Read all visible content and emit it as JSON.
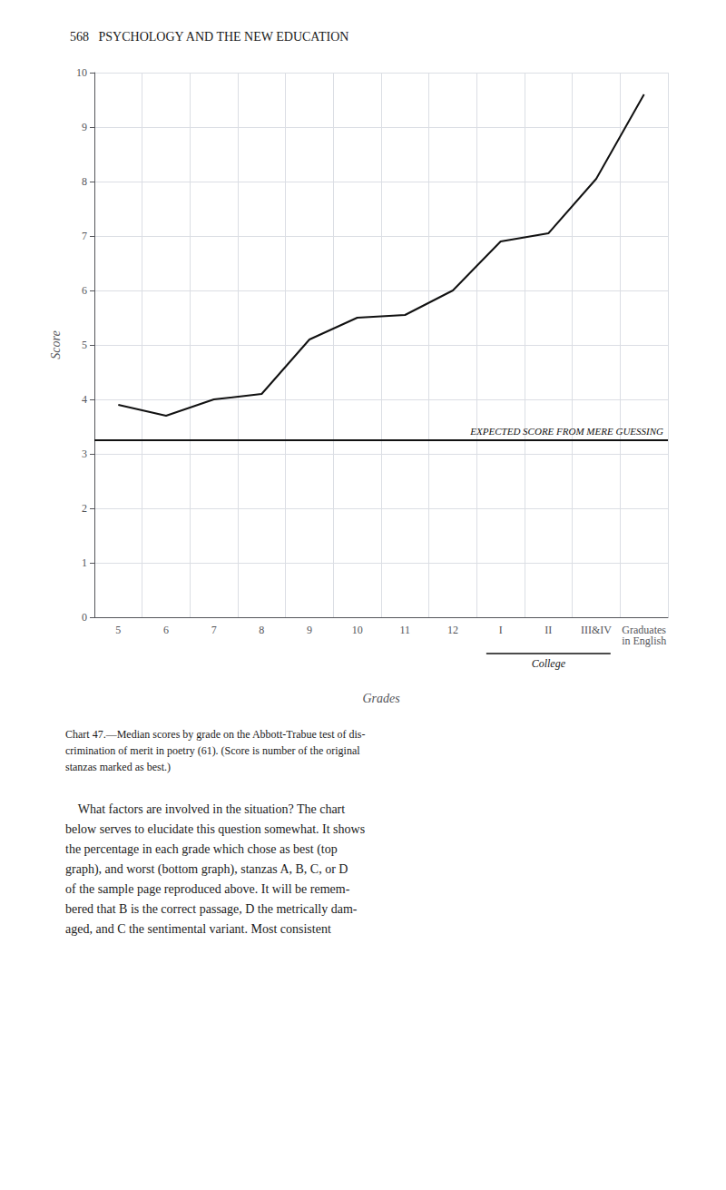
{
  "chart_data": {
    "type": "line",
    "title": "568   PSYCHOLOGY AND THE NEW EDUCATION",
    "categories": [
      "5",
      "6",
      "7",
      "8",
      "9",
      "10",
      "11",
      "12",
      "I",
      "II",
      "III&IV",
      "Graduates\nin English"
    ],
    "values": [
      3.9,
      3.7,
      4.0,
      4.1,
      5.1,
      5.5,
      5.55,
      6.0,
      6.9,
      7.05,
      8.05,
      9.6
    ],
    "color": "#111111",
    "xlabel": "Grades",
    "ylabel": "Score",
    "ylim": [
      0,
      10
    ],
    "yticks": [
      0,
      1,
      2,
      3,
      4,
      5,
      6,
      7,
      8,
      9,
      10
    ],
    "grid": true,
    "annotations": [
      {
        "text": "EXPECTED SCORE FROM MERE GUESSING",
        "y": 3.25
      },
      {
        "text": "College",
        "from": "I",
        "to": "III&IV"
      }
    ],
    "caption": "Chart 47.—Median scores by grade on the Abbott-Trabue test of dis-\ncrimination of merit in poetry (61). (Score is number of the original\nstanzas marked as best.)",
    "body_text": "    What factors are involved in the situation? The chart\nbelow serves to elucidate this question somewhat. It shows\nthe percentage in each grade which chose as best (top\ngraph), and worst (bottom graph), stanzas A, B, C, or D\nof the sample page reproduced above. It will be remem-\nbered that B is the correct passage, D the metrically dam-\naged, and C the sentimental variant. Most consistent"
  }
}
